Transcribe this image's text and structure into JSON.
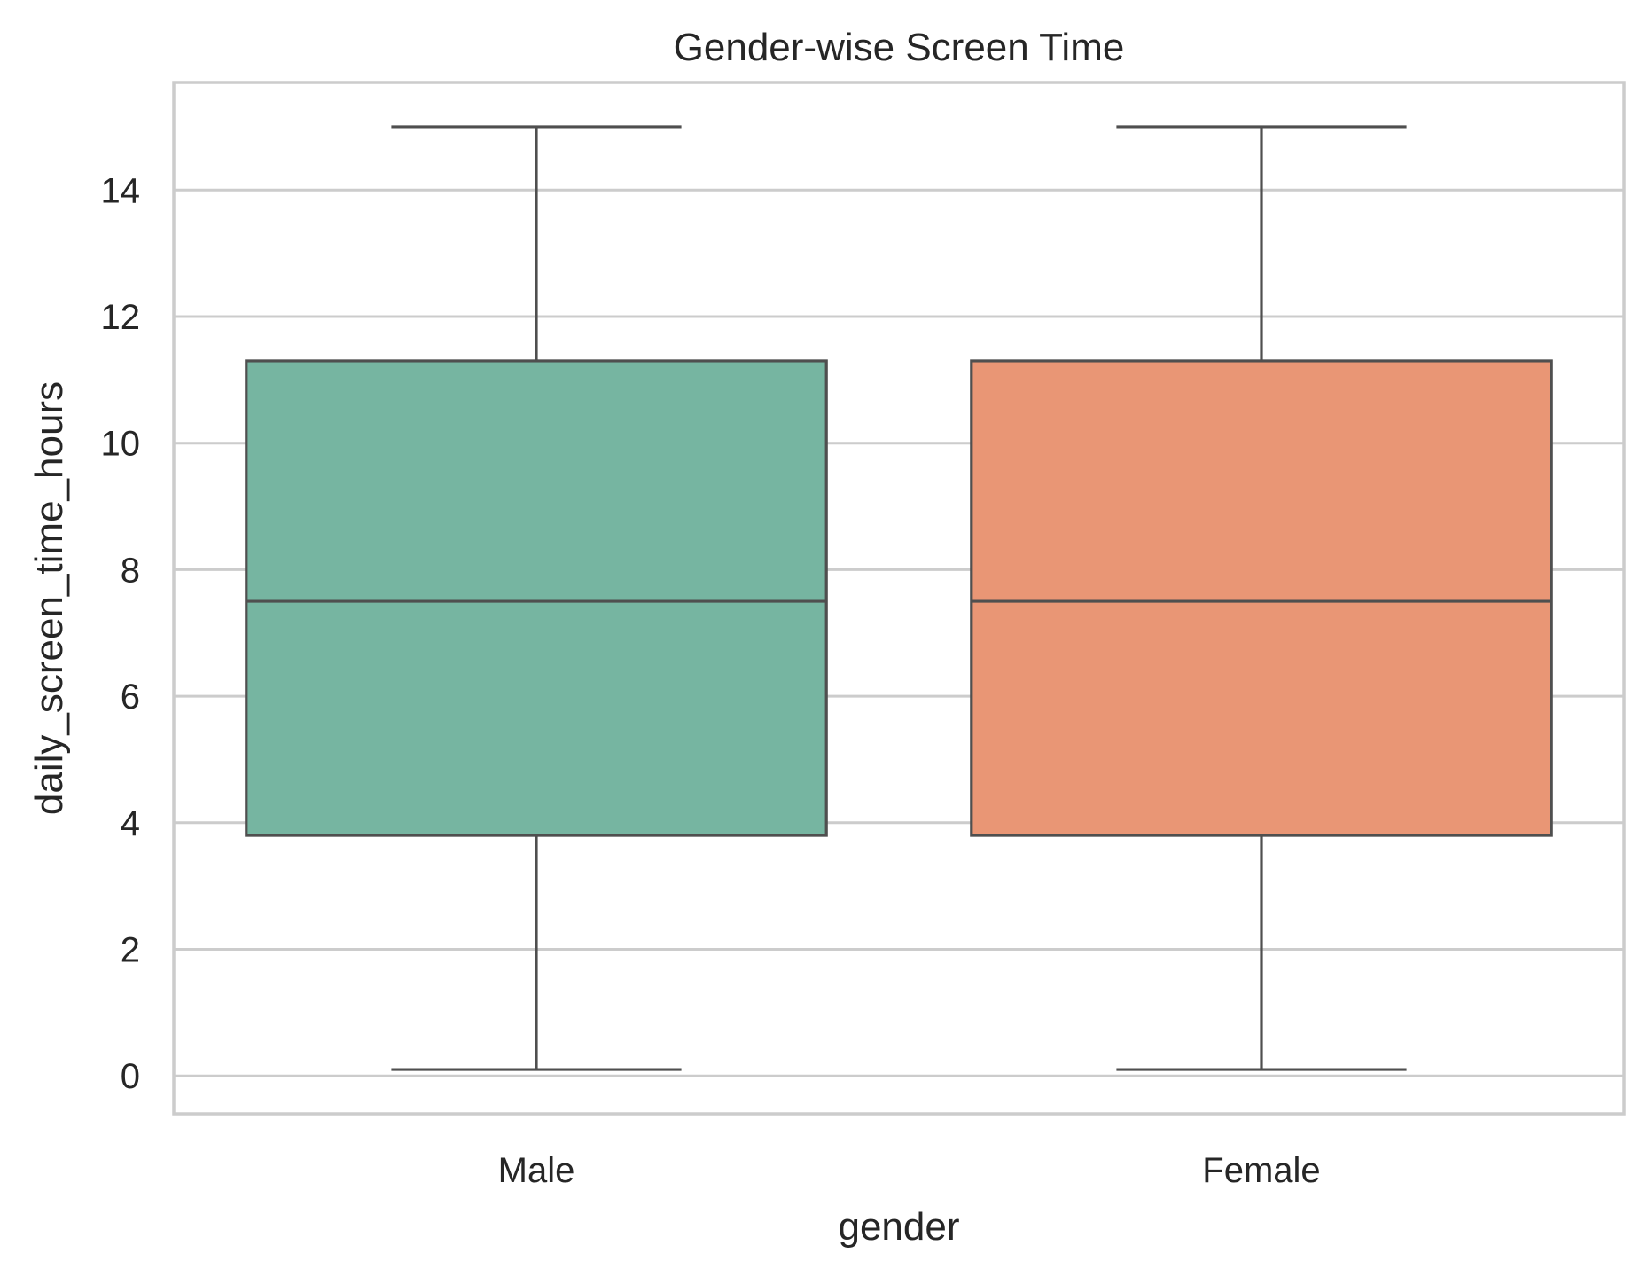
{
  "chart_data": {
    "type": "box",
    "title": "Gender-wise Screen Time",
    "xlabel": "gender",
    "ylabel": "daily_screen_time_hours",
    "categories": [
      "Male",
      "Female"
    ],
    "ylim": [
      -0.6,
      15.7
    ],
    "yticks": [
      0,
      2,
      4,
      6,
      8,
      10,
      12,
      14
    ],
    "grid": "horizontal",
    "boxes": [
      {
        "category": "Male",
        "whisker_low": 0.1,
        "q1": 3.8,
        "median": 7.5,
        "q3": 11.3,
        "whisker_high": 15.0,
        "color": "#76b5a1"
      },
      {
        "category": "Female",
        "whisker_low": 0.1,
        "q1": 3.8,
        "median": 7.5,
        "q3": 11.3,
        "whisker_high": 15.0,
        "color": "#e99675"
      }
    ]
  }
}
